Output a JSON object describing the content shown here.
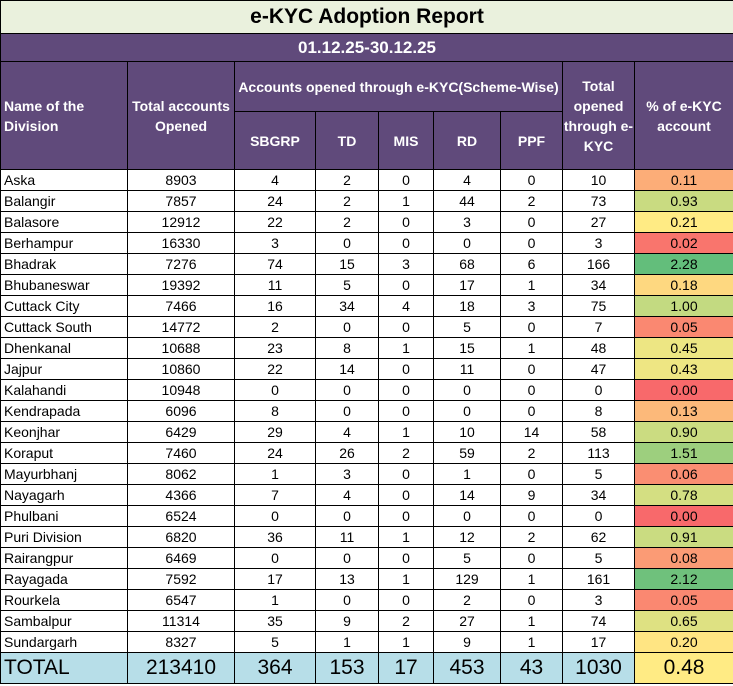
{
  "report": {
    "title": "e-KYC Adoption Report",
    "period": "01.12.25-30.12.25"
  },
  "headers": {
    "division": "Name of the Division",
    "total_accounts": "Total accounts Opened",
    "scheme_group": "Accounts opened through e-KYC(Scheme-Wise)",
    "schemes": [
      "SBGRP",
      "TD",
      "MIS",
      "RD",
      "PPF"
    ],
    "total_ekyc": "Total opened through e-KYC",
    "pct": "% of e-KYC account"
  },
  "colors": {
    "header_bg": "#604a7b",
    "title_bg": "#eaf1dd",
    "total_bg": "#b7dee8",
    "pct_scale_low": "#f8696b",
    "pct_scale_mid": "#ffeb84",
    "pct_scale_high": "#63be7b"
  },
  "rows": [
    {
      "division": "Aska",
      "total": "8903",
      "sbgrp": "4",
      "td": "2",
      "mis": "0",
      "rd": "4",
      "ppf": "0",
      "ekyc": "10",
      "pct": "0.11"
    },
    {
      "division": "Balangir",
      "total": "7857",
      "sbgrp": "24",
      "td": "2",
      "mis": "1",
      "rd": "44",
      "ppf": "2",
      "ekyc": "73",
      "pct": "0.93"
    },
    {
      "division": "Balasore",
      "total": "12912",
      "sbgrp": "22",
      "td": "2",
      "mis": "0",
      "rd": "3",
      "ppf": "0",
      "ekyc": "27",
      "pct": "0.21"
    },
    {
      "division": "Berhampur",
      "total": "16330",
      "sbgrp": "3",
      "td": "0",
      "mis": "0",
      "rd": "0",
      "ppf": "0",
      "ekyc": "3",
      "pct": "0.02"
    },
    {
      "division": "Bhadrak",
      "total": "7276",
      "sbgrp": "74",
      "td": "15",
      "mis": "3",
      "rd": "68",
      "ppf": "6",
      "ekyc": "166",
      "pct": "2.28"
    },
    {
      "division": "Bhubaneswar",
      "total": "19392",
      "sbgrp": "11",
      "td": "5",
      "mis": "0",
      "rd": "17",
      "ppf": "1",
      "ekyc": "34",
      "pct": "0.18"
    },
    {
      "division": "Cuttack City",
      "total": "7466",
      "sbgrp": "16",
      "td": "34",
      "mis": "4",
      "rd": "18",
      "ppf": "3",
      "ekyc": "75",
      "pct": "1.00"
    },
    {
      "division": "Cuttack South",
      "total": "14772",
      "sbgrp": "2",
      "td": "0",
      "mis": "0",
      "rd": "5",
      "ppf": "0",
      "ekyc": "7",
      "pct": "0.05"
    },
    {
      "division": "Dhenkanal",
      "total": "10688",
      "sbgrp": "23",
      "td": "8",
      "mis": "1",
      "rd": "15",
      "ppf": "1",
      "ekyc": "48",
      "pct": "0.45"
    },
    {
      "division": "Jajpur",
      "total": "10860",
      "sbgrp": "22",
      "td": "14",
      "mis": "0",
      "rd": "11",
      "ppf": "0",
      "ekyc": "47",
      "pct": "0.43"
    },
    {
      "division": "Kalahandi",
      "total": "10948",
      "sbgrp": "0",
      "td": "0",
      "mis": "0",
      "rd": "0",
      "ppf": "0",
      "ekyc": "0",
      "pct": "0.00"
    },
    {
      "division": "Kendrapada",
      "total": "6096",
      "sbgrp": "8",
      "td": "0",
      "mis": "0",
      "rd": "0",
      "ppf": "0",
      "ekyc": "8",
      "pct": "0.13"
    },
    {
      "division": "Keonjhar",
      "total": "6429",
      "sbgrp": "29",
      "td": "4",
      "mis": "1",
      "rd": "10",
      "ppf": "14",
      "ekyc": "58",
      "pct": "0.90"
    },
    {
      "division": "Koraput",
      "total": "7460",
      "sbgrp": "24",
      "td": "26",
      "mis": "2",
      "rd": "59",
      "ppf": "2",
      "ekyc": "113",
      "pct": "1.51"
    },
    {
      "division": "Mayurbhanj",
      "total": "8062",
      "sbgrp": "1",
      "td": "3",
      "mis": "0",
      "rd": "1",
      "ppf": "0",
      "ekyc": "5",
      "pct": "0.06"
    },
    {
      "division": "Nayagarh",
      "total": "4366",
      "sbgrp": "7",
      "td": "4",
      "mis": "0",
      "rd": "14",
      "ppf": "9",
      "ekyc": "34",
      "pct": "0.78"
    },
    {
      "division": "Phulbani",
      "total": "6524",
      "sbgrp": "0",
      "td": "0",
      "mis": "0",
      "rd": "0",
      "ppf": "0",
      "ekyc": "0",
      "pct": "0.00"
    },
    {
      "division": "Puri Division",
      "total": "6820",
      "sbgrp": "36",
      "td": "11",
      "mis": "1",
      "rd": "12",
      "ppf": "2",
      "ekyc": "62",
      "pct": "0.91"
    },
    {
      "division": "Rairangpur",
      "total": "6469",
      "sbgrp": "0",
      "td": "0",
      "mis": "0",
      "rd": "5",
      "ppf": "0",
      "ekyc": "5",
      "pct": "0.08"
    },
    {
      "division": "Rayagada",
      "total": "7592",
      "sbgrp": "17",
      "td": "13",
      "mis": "1",
      "rd": "129",
      "ppf": "1",
      "ekyc": "161",
      "pct": "2.12"
    },
    {
      "division": "Rourkela",
      "total": "6547",
      "sbgrp": "1",
      "td": "0",
      "mis": "0",
      "rd": "2",
      "ppf": "0",
      "ekyc": "3",
      "pct": "0.05"
    },
    {
      "division": "Sambalpur",
      "total": "11314",
      "sbgrp": "35",
      "td": "9",
      "mis": "2",
      "rd": "27",
      "ppf": "1",
      "ekyc": "74",
      "pct": "0.65"
    },
    {
      "division": "Sundargarh",
      "total": "8327",
      "sbgrp": "5",
      "td": "1",
      "mis": "1",
      "rd": "9",
      "ppf": "1",
      "ekyc": "17",
      "pct": "0.20"
    }
  ],
  "totals": {
    "label": "TOTAL",
    "total": "213410",
    "sbgrp": "364",
    "td": "153",
    "mis": "17",
    "rd": "453",
    "ppf": "43",
    "ekyc": "1030",
    "pct": "0.48"
  }
}
